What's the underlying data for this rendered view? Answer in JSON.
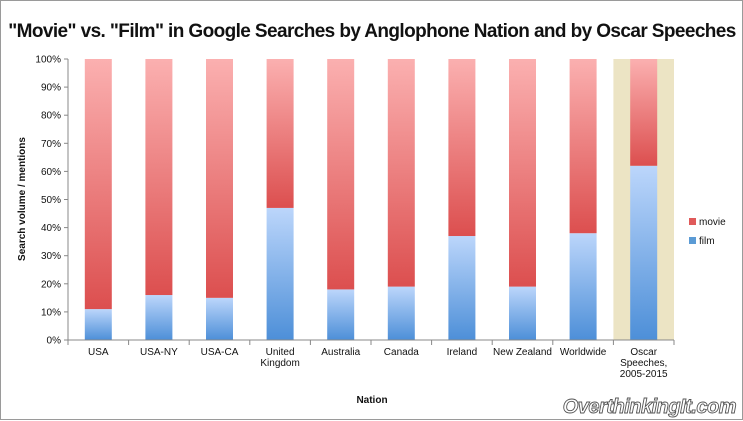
{
  "chart_data": {
    "type": "bar",
    "stacked": "percent",
    "title": "\"Movie\" vs. \"Film\" in Google Searches by Anglophone Nation and by Oscar Speeches",
    "xlabel": "Nation",
    "ylabel": "Search volume / mentions",
    "ylim": [
      0,
      100
    ],
    "yticks": [
      "0%",
      "10%",
      "20%",
      "30%",
      "40%",
      "50%",
      "60%",
      "70%",
      "80%",
      "90%",
      "100%"
    ],
    "categories": [
      [
        "USA"
      ],
      [
        "USA-NY"
      ],
      [
        "USA-CA"
      ],
      [
        "United",
        "Kingdom"
      ],
      [
        "Australia"
      ],
      [
        "Canada"
      ],
      [
        "Ireland"
      ],
      [
        "New Zealand"
      ],
      [
        "Worldwide"
      ],
      [
        "Oscar",
        "Speeches,",
        "2005-2015"
      ]
    ],
    "series": [
      {
        "name": "film",
        "color": "#5b9bd5",
        "values": [
          11,
          16,
          15,
          47,
          18,
          19,
          37,
          19,
          38,
          62
        ]
      },
      {
        "name": "movie",
        "color": "#e05a5a",
        "values": [
          89,
          84,
          85,
          53,
          82,
          81,
          63,
          81,
          62,
          38
        ]
      }
    ],
    "legend": [
      "movie",
      "film"
    ],
    "legend_position": "right",
    "highlight_category": "Oscar Speeches, 2005-2015",
    "highlight_color": "#ece4c4",
    "grid": false
  },
  "watermark": "OverthinkingIt.com"
}
